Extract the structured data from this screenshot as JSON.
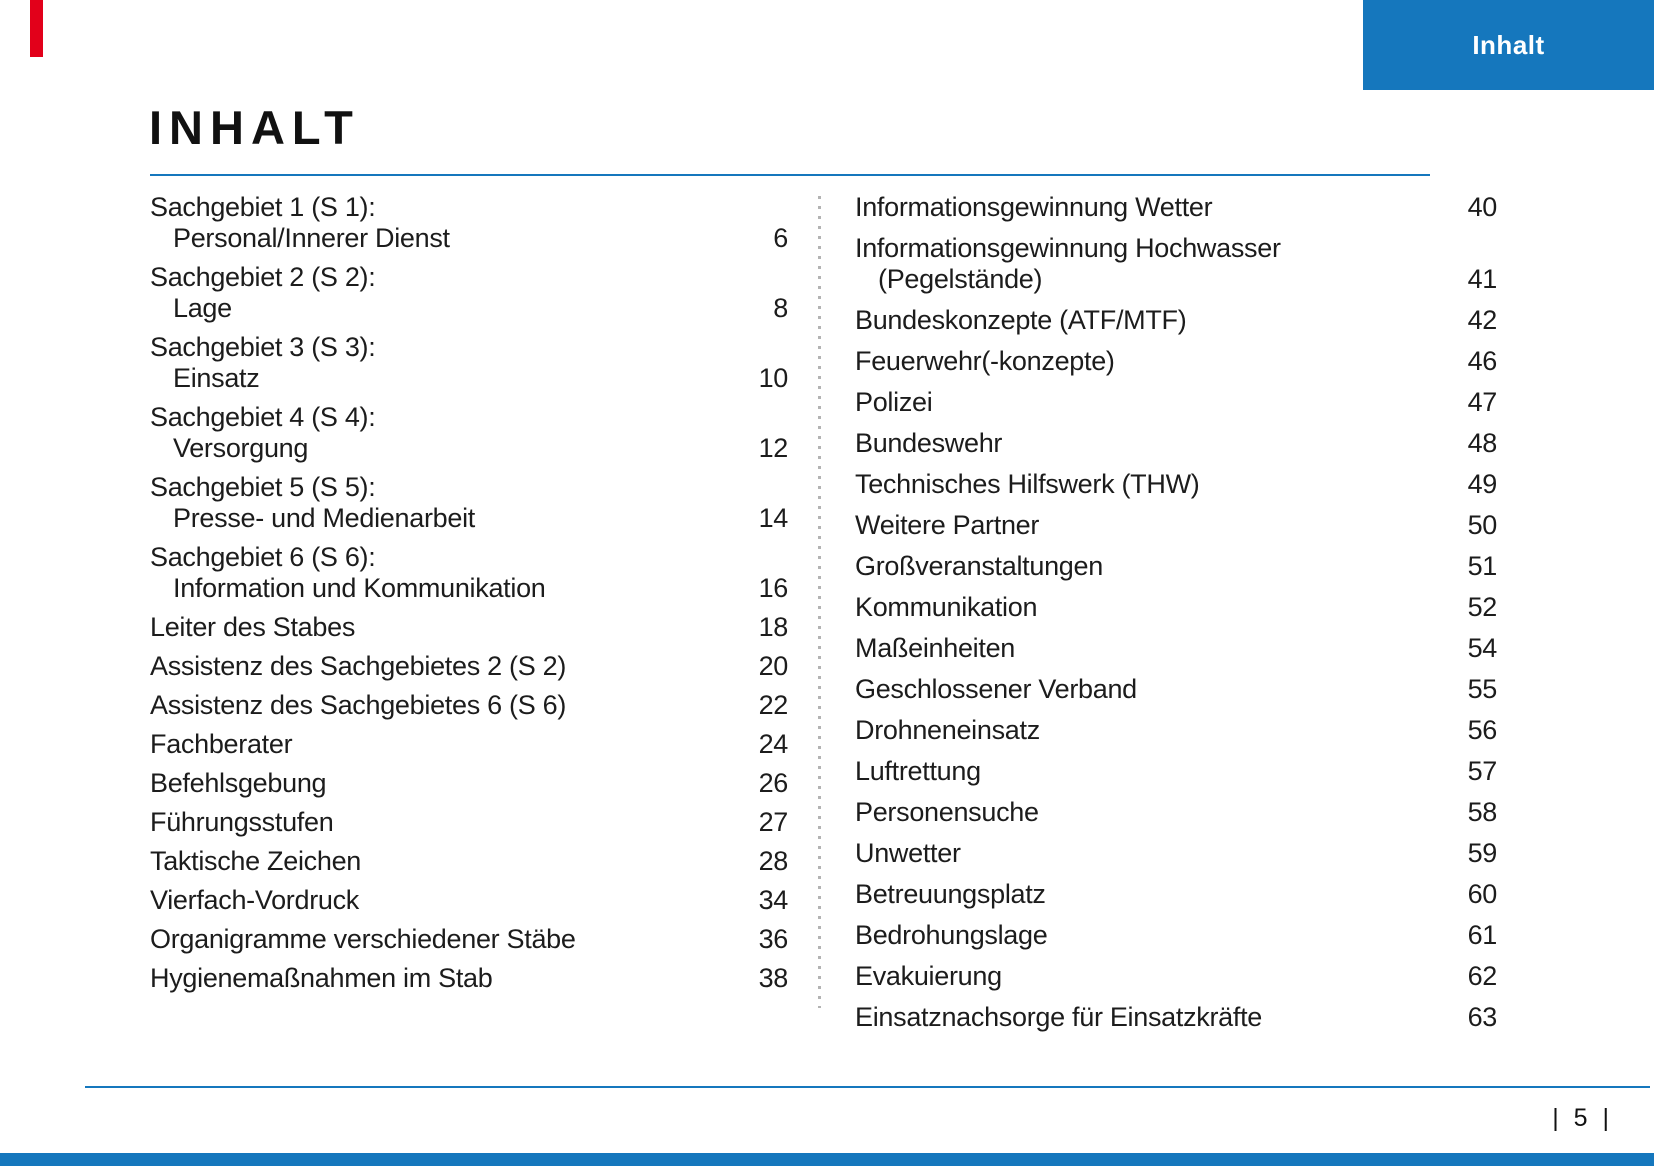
{
  "colors": {
    "blue": "#1577bd",
    "red": "#e2001a",
    "text": "#1c1c1c",
    "dot": "#b3b3b3"
  },
  "header": {
    "tab_label": "Inhalt",
    "title": "INHALT"
  },
  "footer": {
    "page_indicator": "| 5 |"
  },
  "toc": {
    "left_column": [
      {
        "lines": [
          "Sachgebiet 1 (S 1):",
          "Personal/Innerer Dienst"
        ],
        "page": "6"
      },
      {
        "lines": [
          "Sachgebiet 2 (S 2):",
          "Lage"
        ],
        "page": "8"
      },
      {
        "lines": [
          "Sachgebiet 3 (S 3):",
          "Einsatz"
        ],
        "page": "10"
      },
      {
        "lines": [
          "Sachgebiet 4 (S 4):",
          "Versorgung"
        ],
        "page": "12"
      },
      {
        "lines": [
          "Sachgebiet 5 (S 5):",
          "Presse- und Medienarbeit"
        ],
        "page": "14"
      },
      {
        "lines": [
          "Sachgebiet 6 (S 6):",
          "Information und Kommunikation"
        ],
        "page": "16"
      },
      {
        "lines": [
          "Leiter des Stabes"
        ],
        "page": "18"
      },
      {
        "lines": [
          "Assistenz des Sachgebietes 2 (S 2)"
        ],
        "page": "20"
      },
      {
        "lines": [
          "Assistenz des Sachgebietes 6 (S 6)"
        ],
        "page": "22"
      },
      {
        "lines": [
          "Fachberater"
        ],
        "page": "24"
      },
      {
        "lines": [
          "Befehlsgebung"
        ],
        "page": "26"
      },
      {
        "lines": [
          "Führungsstufen"
        ],
        "page": "27"
      },
      {
        "lines": [
          "Taktische Zeichen"
        ],
        "page": "28"
      },
      {
        "lines": [
          "Vierfach-Vordruck"
        ],
        "page": "34"
      },
      {
        "lines": [
          "Organigramme verschiedener Stäbe"
        ],
        "page": "36"
      },
      {
        "lines": [
          "Hygienemaßnahmen im Stab"
        ],
        "page": "38"
      }
    ],
    "right_column": [
      {
        "lines": [
          "Informationsgewinnung Wetter"
        ],
        "page": "40"
      },
      {
        "lines": [
          "Informationsgewinnung Hochwasser",
          "(Pegelstände)"
        ],
        "page": "41"
      },
      {
        "lines": [
          "Bundeskonzepte (ATF/MTF)"
        ],
        "page": "42"
      },
      {
        "lines": [
          "Feuerwehr(-konzepte)"
        ],
        "page": "46"
      },
      {
        "lines": [
          "Polizei"
        ],
        "page": "47"
      },
      {
        "lines": [
          "Bundeswehr"
        ],
        "page": "48"
      },
      {
        "lines": [
          "Technisches Hilfswerk (THW)"
        ],
        "page": "49"
      },
      {
        "lines": [
          "Weitere Partner"
        ],
        "page": "50"
      },
      {
        "lines": [
          "Großveranstaltungen"
        ],
        "page": "51"
      },
      {
        "lines": [
          "Kommunikation"
        ],
        "page": "52"
      },
      {
        "lines": [
          "Maßeinheiten"
        ],
        "page": "54"
      },
      {
        "lines": [
          "Geschlossener Verband"
        ],
        "page": "55"
      },
      {
        "lines": [
          "Drohneneinsatz"
        ],
        "page": "56"
      },
      {
        "lines": [
          "Luftrettung"
        ],
        "page": "57"
      },
      {
        "lines": [
          "Personensuche"
        ],
        "page": "58"
      },
      {
        "lines": [
          "Unwetter"
        ],
        "page": "59"
      },
      {
        "lines": [
          "Betreuungsplatz"
        ],
        "page": "60"
      },
      {
        "lines": [
          "Bedrohungslage"
        ],
        "page": "61"
      },
      {
        "lines": [
          "Evakuierung"
        ],
        "page": "62"
      },
      {
        "lines": [
          "Einsatznachsorge für Einsatzkräfte"
        ],
        "page": "63"
      }
    ]
  }
}
